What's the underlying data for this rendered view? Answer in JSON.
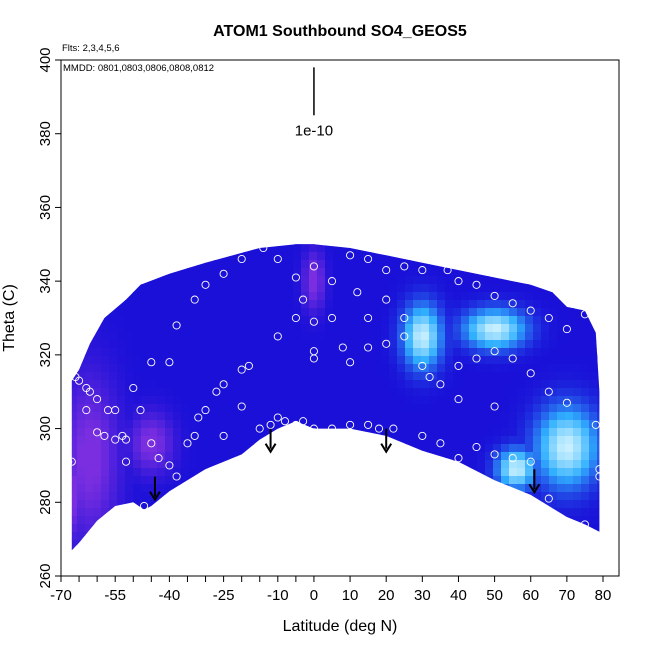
{
  "chart_data": {
    "type": "heatmap",
    "title": "ATOM1 Southbound SO4_GEOS5",
    "subtitle_flights": "Flts: 2,3,4,5,6",
    "subtitle_dates": "MMDD: 0801,0803,0806,0808,0812",
    "xlabel": "Latitude (deg N)",
    "ylabel": "Theta (C)",
    "xlim": [
      -70,
      80
    ],
    "ylim": [
      260,
      400
    ],
    "x_ticks": [
      -70,
      -55,
      -40,
      -25,
      -10,
      0,
      10,
      20,
      30,
      40,
      50,
      60,
      70,
      80
    ],
    "x_tick_labels": [
      "-70",
      "-55",
      "-40",
      "-25",
      "-10",
      "0",
      "10",
      "20",
      "30",
      "40",
      "50",
      "60",
      "70",
      "80"
    ],
    "x_minor_ticks": [
      -65,
      -60,
      -50,
      -45,
      -35,
      -30,
      -20,
      -15,
      -5
    ],
    "y_ticks": [
      260,
      280,
      300,
      320,
      340,
      360,
      380,
      400
    ],
    "y_tick_labels": [
      "260",
      "280",
      "300",
      "320",
      "340",
      "360",
      "380",
      "400"
    ],
    "scale_label": "1e-10",
    "scale_bar": {
      "x": 0,
      "y_from": 385,
      "y_to": 398
    },
    "colors": {
      "deep": "#1a10d8",
      "purple": "#7a2ee0",
      "light": "#c8f0ff",
      "cyan": "#30b0ff",
      "marker": "#ffffff",
      "arrow": "#000000"
    },
    "field": {
      "top_boundary": [
        [
          -67,
          313
        ],
        [
          -65,
          316
        ],
        [
          -62,
          323
        ],
        [
          -58,
          330
        ],
        [
          -52,
          335
        ],
        [
          -48,
          339
        ],
        [
          -40,
          342
        ],
        [
          -30,
          345
        ],
        [
          -15,
          349
        ],
        [
          -5,
          350
        ],
        [
          0,
          350
        ],
        [
          10,
          349
        ],
        [
          20,
          347
        ],
        [
          30,
          345
        ],
        [
          40,
          343
        ],
        [
          50,
          341
        ],
        [
          60,
          339
        ],
        [
          66,
          337
        ],
        [
          70,
          333
        ],
        [
          75,
          332
        ],
        [
          78,
          326
        ],
        [
          79,
          310
        ]
      ],
      "bottom_boundary": [
        [
          79,
          272
        ],
        [
          75,
          274
        ],
        [
          70,
          276
        ],
        [
          60,
          282
        ],
        [
          50,
          286
        ],
        [
          40,
          291
        ],
        [
          30,
          294
        ],
        [
          20,
          298
        ],
        [
          10,
          300
        ],
        [
          0,
          300
        ],
        [
          -5,
          302
        ],
        [
          -10,
          300
        ],
        [
          -15,
          297
        ],
        [
          -20,
          293
        ],
        [
          -30,
          289
        ],
        [
          -40,
          283
        ],
        [
          -45,
          279
        ],
        [
          -47,
          278
        ],
        [
          -50,
          280
        ],
        [
          -55,
          279
        ],
        [
          -60,
          275
        ],
        [
          -65,
          269
        ],
        [
          -67,
          267
        ]
      ],
      "purple_zones": [
        {
          "lat": -62,
          "theta": 292,
          "rlat": 8,
          "rtheta": 22
        },
        {
          "lat": -45,
          "theta": 296,
          "rlat": 6,
          "rtheta": 8
        },
        {
          "lat": -67,
          "theta": 282,
          "rlat": 4,
          "rtheta": 12
        },
        {
          "lat": 0,
          "theta": 340,
          "rlat": 3,
          "rtheta": 8
        }
      ],
      "bright_zones": [
        {
          "lat": 50,
          "theta": 327,
          "rlat": 8,
          "rtheta": 5
        },
        {
          "lat": 56,
          "theta": 289,
          "rlat": 5,
          "rtheta": 5
        },
        {
          "lat": 70,
          "theta": 295,
          "rlat": 8,
          "rtheta": 10
        },
        {
          "lat": 30,
          "theta": 325,
          "rlat": 5,
          "rtheta": 8
        }
      ]
    },
    "observations": [
      [
        -67,
        291
      ],
      [
        -65,
        313
      ],
      [
        -63,
        311
      ],
      [
        -62,
        310
      ],
      [
        -60,
        308
      ],
      [
        -57,
        305
      ],
      [
        -55,
        305
      ],
      [
        -53,
        298
      ],
      [
        -52,
        297
      ],
      [
        -52,
        291
      ],
      [
        -50,
        277
      ],
      [
        -47,
        279
      ],
      [
        -45,
        296
      ],
      [
        -43,
        292
      ],
      [
        -40,
        290
      ],
      [
        -38,
        287
      ],
      [
        -36,
        283
      ],
      [
        -35,
        296
      ],
      [
        -33,
        298
      ],
      [
        -32,
        303
      ],
      [
        -30,
        305
      ],
      [
        -27,
        310
      ],
      [
        -25,
        312
      ],
      [
        -20,
        316
      ],
      [
        -18,
        317
      ],
      [
        -15,
        300
      ],
      [
        -12,
        301
      ],
      [
        -10,
        303
      ],
      [
        -8,
        302
      ],
      [
        -5,
        301
      ],
      [
        -3,
        302
      ],
      [
        0,
        300
      ],
      [
        0,
        299
      ],
      [
        -3,
        335
      ],
      [
        0,
        344
      ],
      [
        -5,
        341
      ],
      [
        5,
        340
      ],
      [
        -10,
        346
      ],
      [
        -14,
        349
      ],
      [
        -20,
        346
      ],
      [
        -25,
        342
      ],
      [
        -30,
        339
      ],
      [
        -33,
        335
      ],
      [
        -38,
        328
      ],
      [
        -40,
        318
      ],
      [
        -45,
        318
      ],
      [
        -48,
        305
      ],
      [
        -50,
        311
      ],
      [
        -55,
        297
      ],
      [
        -58,
        298
      ],
      [
        -60,
        299
      ],
      [
        -63,
        305
      ],
      [
        -66,
        314
      ],
      [
        -68,
        291
      ],
      [
        5,
        330
      ],
      [
        0,
        329
      ],
      [
        10,
        347
      ],
      [
        12,
        337
      ],
      [
        15,
        346
      ],
      [
        20,
        343
      ],
      [
        25,
        344
      ],
      [
        30,
        343
      ],
      [
        37,
        343
      ],
      [
        40,
        340
      ],
      [
        45,
        339
      ],
      [
        50,
        336
      ],
      [
        55,
        334
      ],
      [
        60,
        332
      ],
      [
        65,
        330
      ],
      [
        70,
        327
      ],
      [
        75,
        331
      ],
      [
        78,
        301
      ],
      [
        79,
        287
      ],
      [
        79,
        289
      ],
      [
        75,
        274
      ],
      [
        65,
        281
      ],
      [
        60,
        291
      ],
      [
        55,
        292
      ],
      [
        50,
        293
      ],
      [
        45,
        295
      ],
      [
        40,
        292
      ],
      [
        35,
        296
      ],
      [
        30,
        298
      ],
      [
        22,
        300
      ],
      [
        18,
        300
      ],
      [
        15,
        301
      ],
      [
        10,
        301
      ],
      [
        5,
        300
      ],
      [
        2,
        298
      ],
      [
        0,
        321
      ],
      [
        0,
        319
      ],
      [
        8,
        322
      ],
      [
        10,
        318
      ],
      [
        15,
        322
      ],
      [
        20,
        323
      ],
      [
        25,
        325
      ],
      [
        30,
        317
      ],
      [
        32,
        314
      ],
      [
        35,
        312
      ],
      [
        40,
        317
      ],
      [
        45,
        319
      ],
      [
        50,
        321
      ],
      [
        55,
        319
      ],
      [
        60,
        315
      ],
      [
        65,
        310
      ],
      [
        70,
        307
      ],
      [
        40,
        308
      ],
      [
        -25,
        298
      ],
      [
        -20,
        306
      ],
      [
        -10,
        325
      ],
      [
        -5,
        330
      ],
      [
        15,
        330
      ],
      [
        20,
        335
      ],
      [
        25,
        330
      ],
      [
        50,
        306
      ]
    ],
    "arrows": [
      [
        -44,
        281
      ],
      [
        -12,
        294
      ],
      [
        20,
        294
      ],
      [
        61,
        283
      ]
    ]
  }
}
